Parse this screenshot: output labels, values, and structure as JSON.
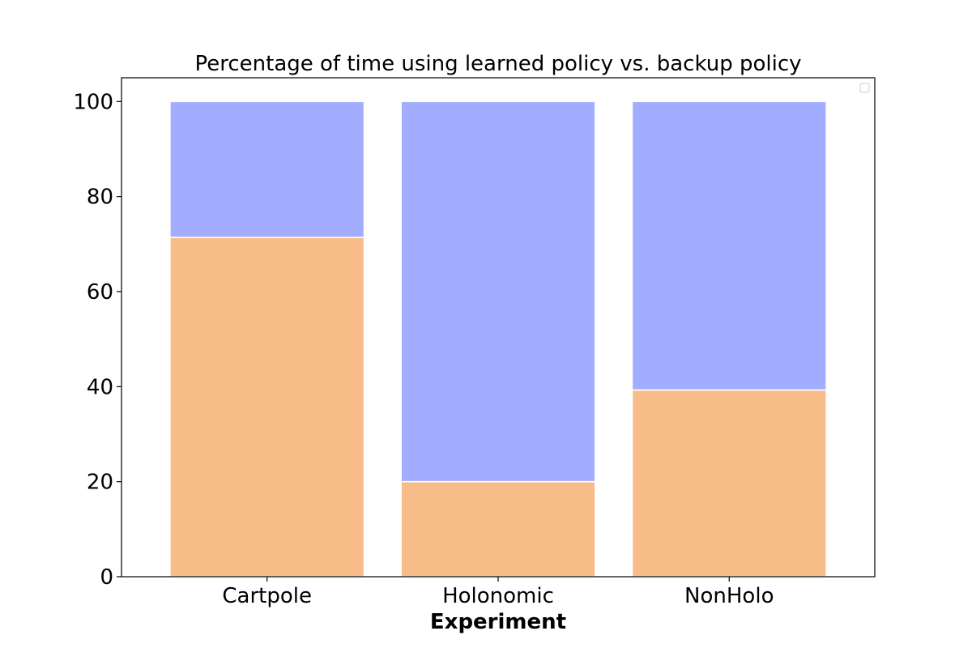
{
  "chart_data": {
    "type": "bar",
    "stacked": true,
    "title": "Percentage of time using learned policy vs. backup policy",
    "xlabel": "Experiment",
    "ylabel": "",
    "categories": [
      "Cartpole",
      "Holonomic",
      "NonHolo"
    ],
    "series": [
      {
        "values": [
          71.4,
          20.0,
          39.3
        ],
        "color": "#f8bc89"
      },
      {
        "values": [
          28.6,
          80.0,
          60.7
        ],
        "color": "#a3adff"
      }
    ],
    "ylim": [
      0,
      105
    ],
    "yticks": [
      0,
      20,
      40,
      60,
      80,
      100
    ],
    "grid": false,
    "legend": {
      "placement": "top-right",
      "entries": []
    }
  }
}
